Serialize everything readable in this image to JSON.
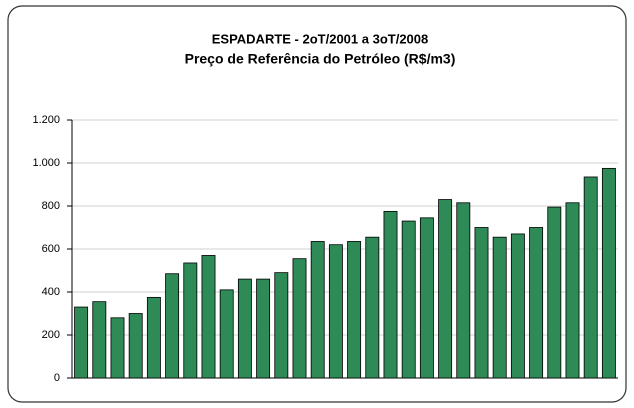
{
  "chart_data": {
    "type": "bar",
    "title": "ESPADARTE - 2oT/2001 a 3oT/2008",
    "subtitle": "Preço de Referência do Petróleo (R$/m3)",
    "categories": [
      null,
      null,
      null,
      null,
      null,
      null,
      null,
      null,
      null,
      null,
      null,
      null,
      null,
      null,
      null,
      null,
      null,
      null,
      null,
      null,
      null,
      null,
      null,
      null,
      null,
      null,
      null,
      null,
      null,
      null
    ],
    "values": [
      330,
      355,
      280,
      300,
      375,
      485,
      535,
      570,
      410,
      460,
      460,
      490,
      555,
      635,
      620,
      635,
      655,
      775,
      730,
      745,
      830,
      815,
      700,
      655,
      670,
      700,
      795,
      815,
      935,
      975
    ],
    "color": "#2e8b57",
    "ylim": [
      0,
      1200
    ],
    "yticks": [
      0,
      200,
      400,
      600,
      800,
      {
        "value": 1000,
        "label": "1.000"
      },
      {
        "value": 1200,
        "label": "1.200"
      }
    ],
    "grid": true
  }
}
